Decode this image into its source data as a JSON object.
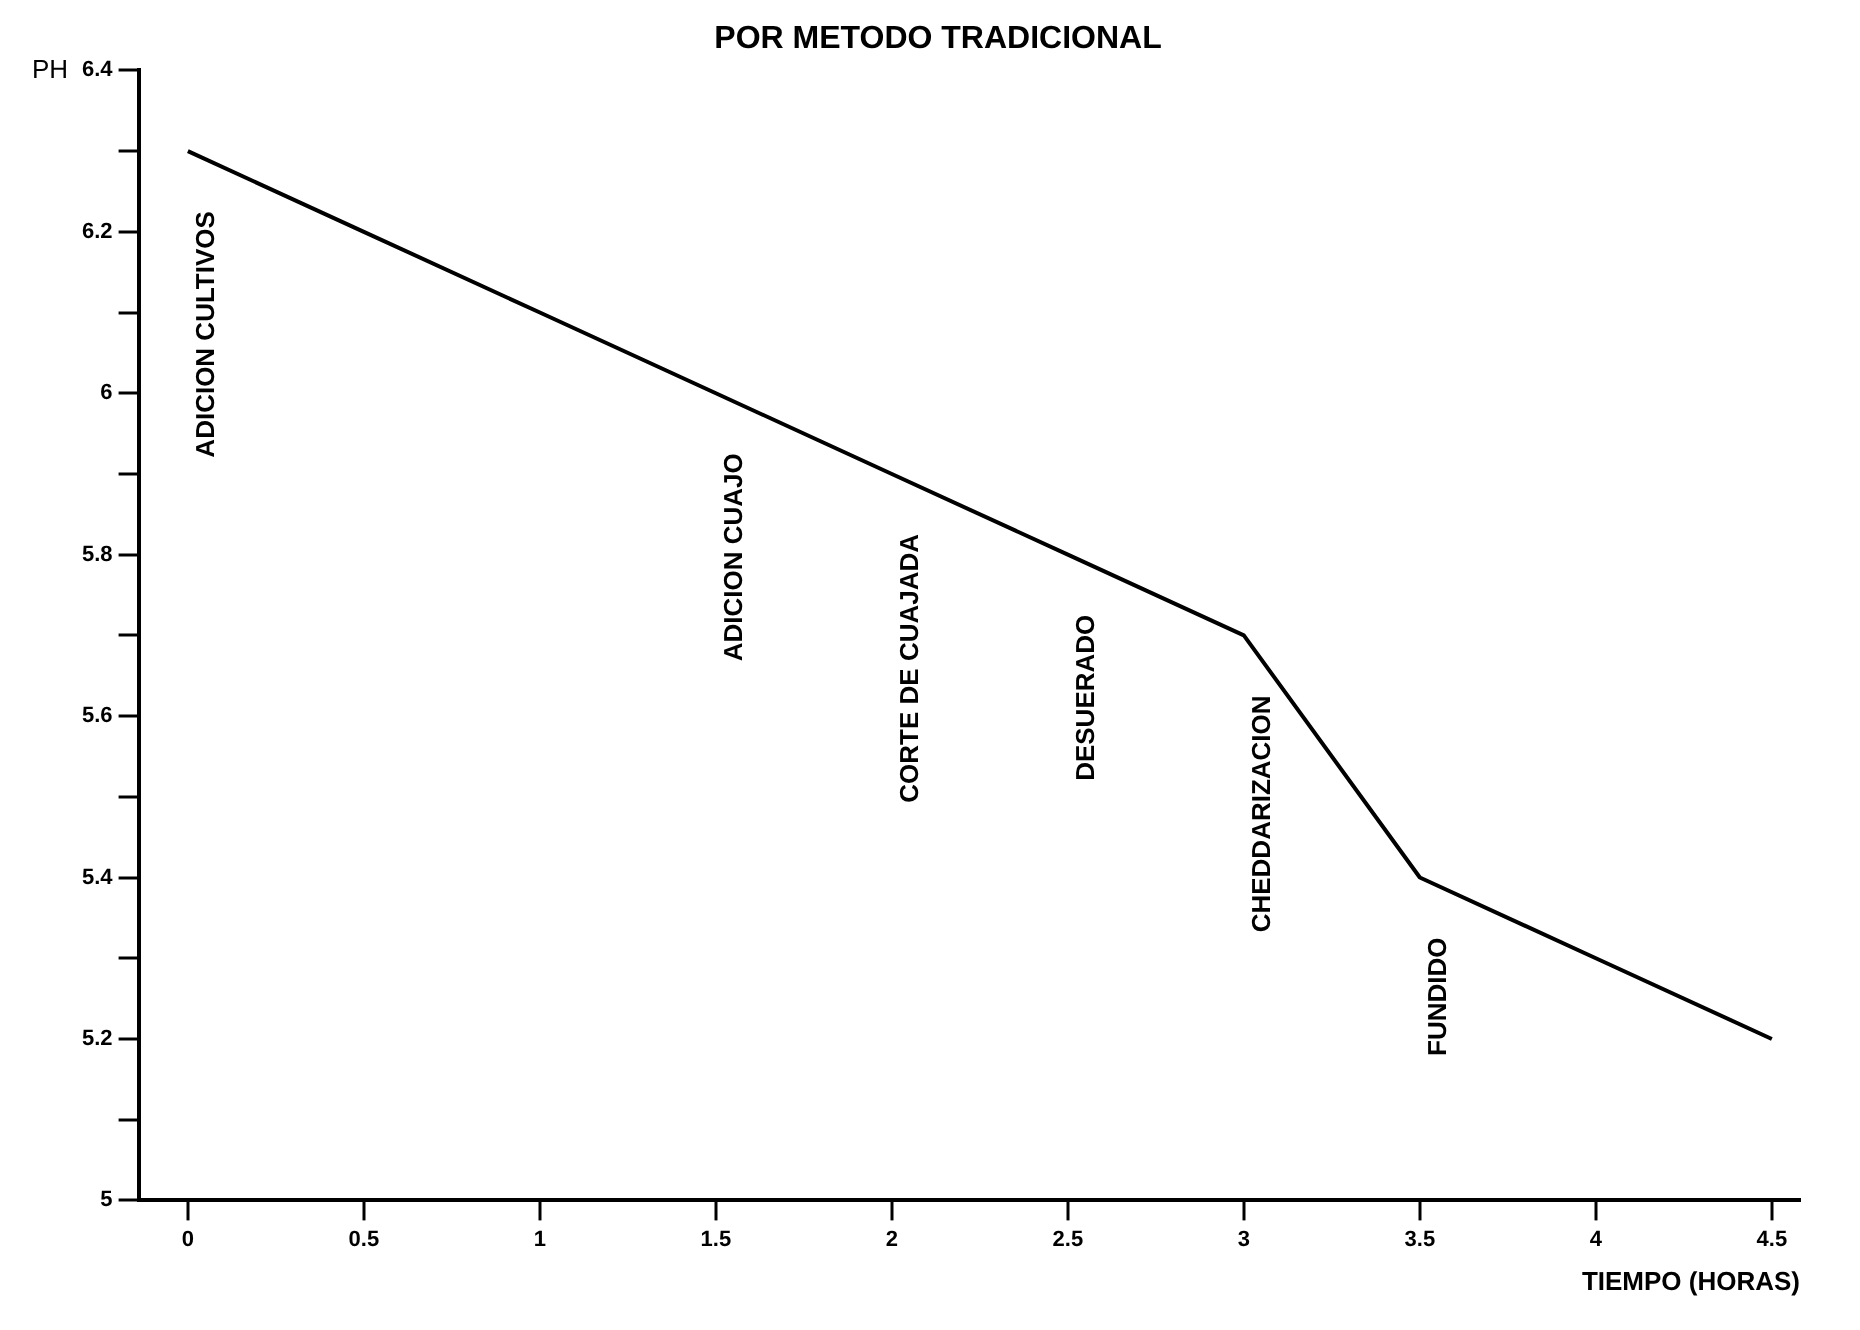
{
  "chart_data": {
    "type": "line",
    "title": "POR METODO TRADICIONAL",
    "xlabel": "TIEMPO (HORAS)",
    "ylabel": "PH",
    "x": [
      0,
      0.5,
      1,
      1.5,
      2,
      2.5,
      3,
      3.5,
      4,
      4.5
    ],
    "series": [
      {
        "color": "#000000",
        "values": [
          6.3,
          6.2,
          6.1,
          6.0,
          5.9,
          5.8,
          5.7,
          5.4,
          5.3,
          5.2
        ]
      }
    ],
    "xlim": [
      -0.14,
      4.58
    ],
    "xticks": [
      0,
      0.5,
      1,
      1.5,
      2,
      2.5,
      3,
      3.5,
      4,
      4.5
    ],
    "ylim": [
      5,
      6.4
    ],
    "yticks": [
      5,
      {
        "value": 5.1,
        "label": null
      },
      5.2,
      {
        "value": 5.3,
        "label": null
      },
      5.4,
      {
        "value": 5.5,
        "label": null
      },
      5.6,
      {
        "value": 5.7,
        "label": null
      },
      5.8,
      {
        "value": 5.9,
        "label": null
      },
      6,
      {
        "value": 6.1,
        "label": null
      },
      6.2,
      {
        "value": 6.3,
        "label": null
      },
      6.4
    ],
    "annotations": [
      {
        "text": "ADICION CULTIVOS",
        "x": 0,
        "y": 6.3
      },
      {
        "text": "ADICION CUAJO",
        "x": 1.5,
        "y": 6.0
      },
      {
        "text": "CORTE DE CUAJADA",
        "x": 2,
        "y": 5.9
      },
      {
        "text": "DESUERADO",
        "x": 2.5,
        "y": 5.8
      },
      {
        "text": "CHEDDARIZACION",
        "x": 3,
        "y": 5.7
      },
      {
        "text": "FUNDIDO",
        "x": 3.5,
        "y": 5.4
      }
    ],
    "grid": false,
    "legend": false,
    "marker": "none",
    "line_style": "solid"
  }
}
